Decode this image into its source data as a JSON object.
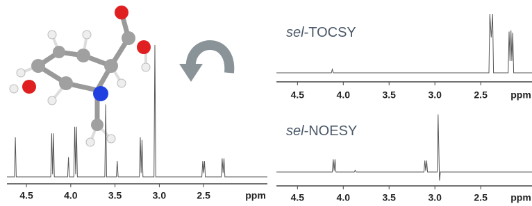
{
  "chart_data": [
    {
      "type": "line",
      "xlabel": "ppm",
      "xlim": [
        4.72,
        1.78
      ],
      "ylim": [
        0,
        100
      ],
      "xticks": [
        4.5,
        {
          "value": 4,
          "label": "4.0"
        },
        3.5,
        {
          "value": 3,
          "label": "3.0"
        },
        2.5
      ],
      "series": [
        {
          "color": "#555555",
          "x": [
            4.72,
            4.635,
            4.625,
            4.615,
            4.225,
            4.215,
            4.205,
            4.195,
            4.185,
            4.035,
            4.025,
            4.015,
            3.965,
            3.955,
            3.945,
            3.935,
            3.925,
            3.615,
            3.605,
            3.595,
            3.485,
            3.475,
            3.465,
            3.225,
            3.215,
            3.205,
            3.195,
            3.185,
            3.06,
            3.05,
            3.04,
            2.52,
            2.51,
            2.5,
            2.49,
            2.48,
            2.3,
            2.29,
            2.28,
            2.27,
            2.26,
            1.78
          ],
          "values": [
            0,
            0,
            30,
            0,
            0,
            33,
            2,
            33,
            0,
            0,
            15,
            0,
            0,
            38,
            2,
            38,
            0,
            0,
            55,
            0,
            0,
            12,
            0,
            0,
            30,
            3,
            28,
            0,
            0,
            100,
            0,
            0,
            12,
            3,
            12,
            0,
            0,
            14,
            3,
            14,
            0,
            0
          ]
        }
      ]
    },
    {
      "type": "line",
      "title": "sel-TOCSY",
      "xlabel": "ppm",
      "xlim": [
        4.73,
        1.94
      ],
      "ylim": [
        0,
        100
      ],
      "xticks": [
        4.5,
        {
          "value": 4,
          "label": "4.0"
        },
        3.5,
        {
          "value": 3,
          "label": "3.0"
        },
        2.5
      ],
      "series": [
        {
          "color": "#555555",
          "x": [
            4.73,
            4.13,
            4.12,
            4.11,
            2.41,
            2.4,
            2.385,
            2.37,
            2.36,
            2.2,
            2.19,
            2.18,
            2.17,
            2.16,
            2.15,
            2.14,
            1.94
          ],
          "values": [
            0,
            0,
            6,
            0,
            0,
            100,
            60,
            100,
            0,
            0,
            70,
            20,
            72,
            20,
            68,
            0,
            0
          ]
        }
      ]
    },
    {
      "type": "line",
      "title": "sel-NOESY",
      "xlabel": "ppm",
      "xlim": [
        4.73,
        1.94
      ],
      "ylim": [
        -20,
        100
      ],
      "xticks": [
        4.5,
        {
          "value": 4,
          "label": "4.0"
        },
        3.5,
        {
          "value": 3,
          "label": "3.0"
        },
        2.5
      ],
      "series": [
        {
          "color": "#555555",
          "x": [
            4.73,
            4.12,
            4.11,
            4.1,
            4.09,
            4.08,
            3.88,
            3.87,
            3.86,
            3.12,
            3.11,
            3.1,
            3.09,
            3.08,
            2.975,
            2.965,
            2.95,
            2.94,
            1.94
          ],
          "values": [
            0,
            0,
            22,
            2,
            22,
            0,
            0,
            3,
            0,
            0,
            20,
            2,
            20,
            0,
            0,
            100,
            -15,
            0,
            0
          ]
        }
      ]
    }
  ]
}
